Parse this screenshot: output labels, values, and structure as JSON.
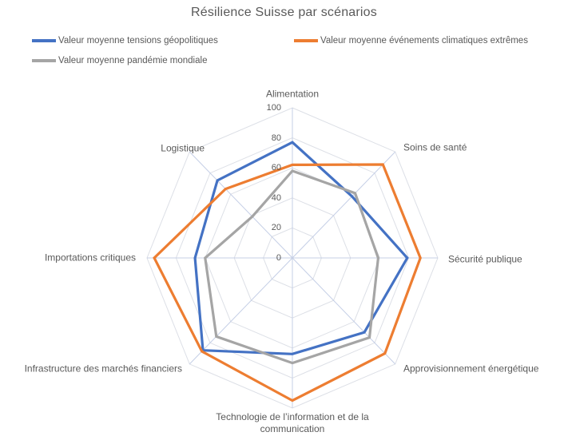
{
  "title": "Résilience Suisse par scénarios",
  "legend": [
    {
      "label": "Valeur moyenne tensions géopolitiques",
      "color": "#4472C4"
    },
    {
      "label": "Valeur moyenne événements climatiques extrêmes",
      "color": "#ED7D31"
    },
    {
      "label": "Valeur moyenne pandémie mondiale",
      "color": "#A5A5A5"
    }
  ],
  "chart_data": {
    "type": "radar",
    "title": "Résilience Suisse par scénarios",
    "categories": [
      "Alimentation",
      "Soins de santé",
      "Sécurité publique",
      "Approvisionnement énergétique",
      "Technologie de l’information et de la communication",
      "Infrastructure des marchés financiers",
      "Importations critiques",
      "Logistique"
    ],
    "series": [
      {
        "name": "Valeur moyenne tensions géopolitiques",
        "color": "#4472C4",
        "values": [
          77,
          58,
          79,
          70,
          64,
          87,
          67,
          73
        ]
      },
      {
        "name": "Valeur moyenne événements climatiques extrêmes",
        "color": "#ED7D31",
        "values": [
          62,
          88,
          88,
          90,
          95,
          88,
          95,
          65
        ]
      },
      {
        "name": "Valeur moyenne pandémie mondiale",
        "color": "#A5A5A5",
        "values": [
          58,
          61,
          59,
          75,
          70,
          74,
          60,
          39
        ]
      }
    ],
    "axis": {
      "min": 0,
      "max": 100,
      "ticks": [
        0,
        20,
        40,
        60,
        80,
        100
      ]
    },
    "grid": true,
    "legend_position": "top",
    "grid_ring_color": "#dcdfe6",
    "grid_spoke_color": "#c5cfe6"
  }
}
